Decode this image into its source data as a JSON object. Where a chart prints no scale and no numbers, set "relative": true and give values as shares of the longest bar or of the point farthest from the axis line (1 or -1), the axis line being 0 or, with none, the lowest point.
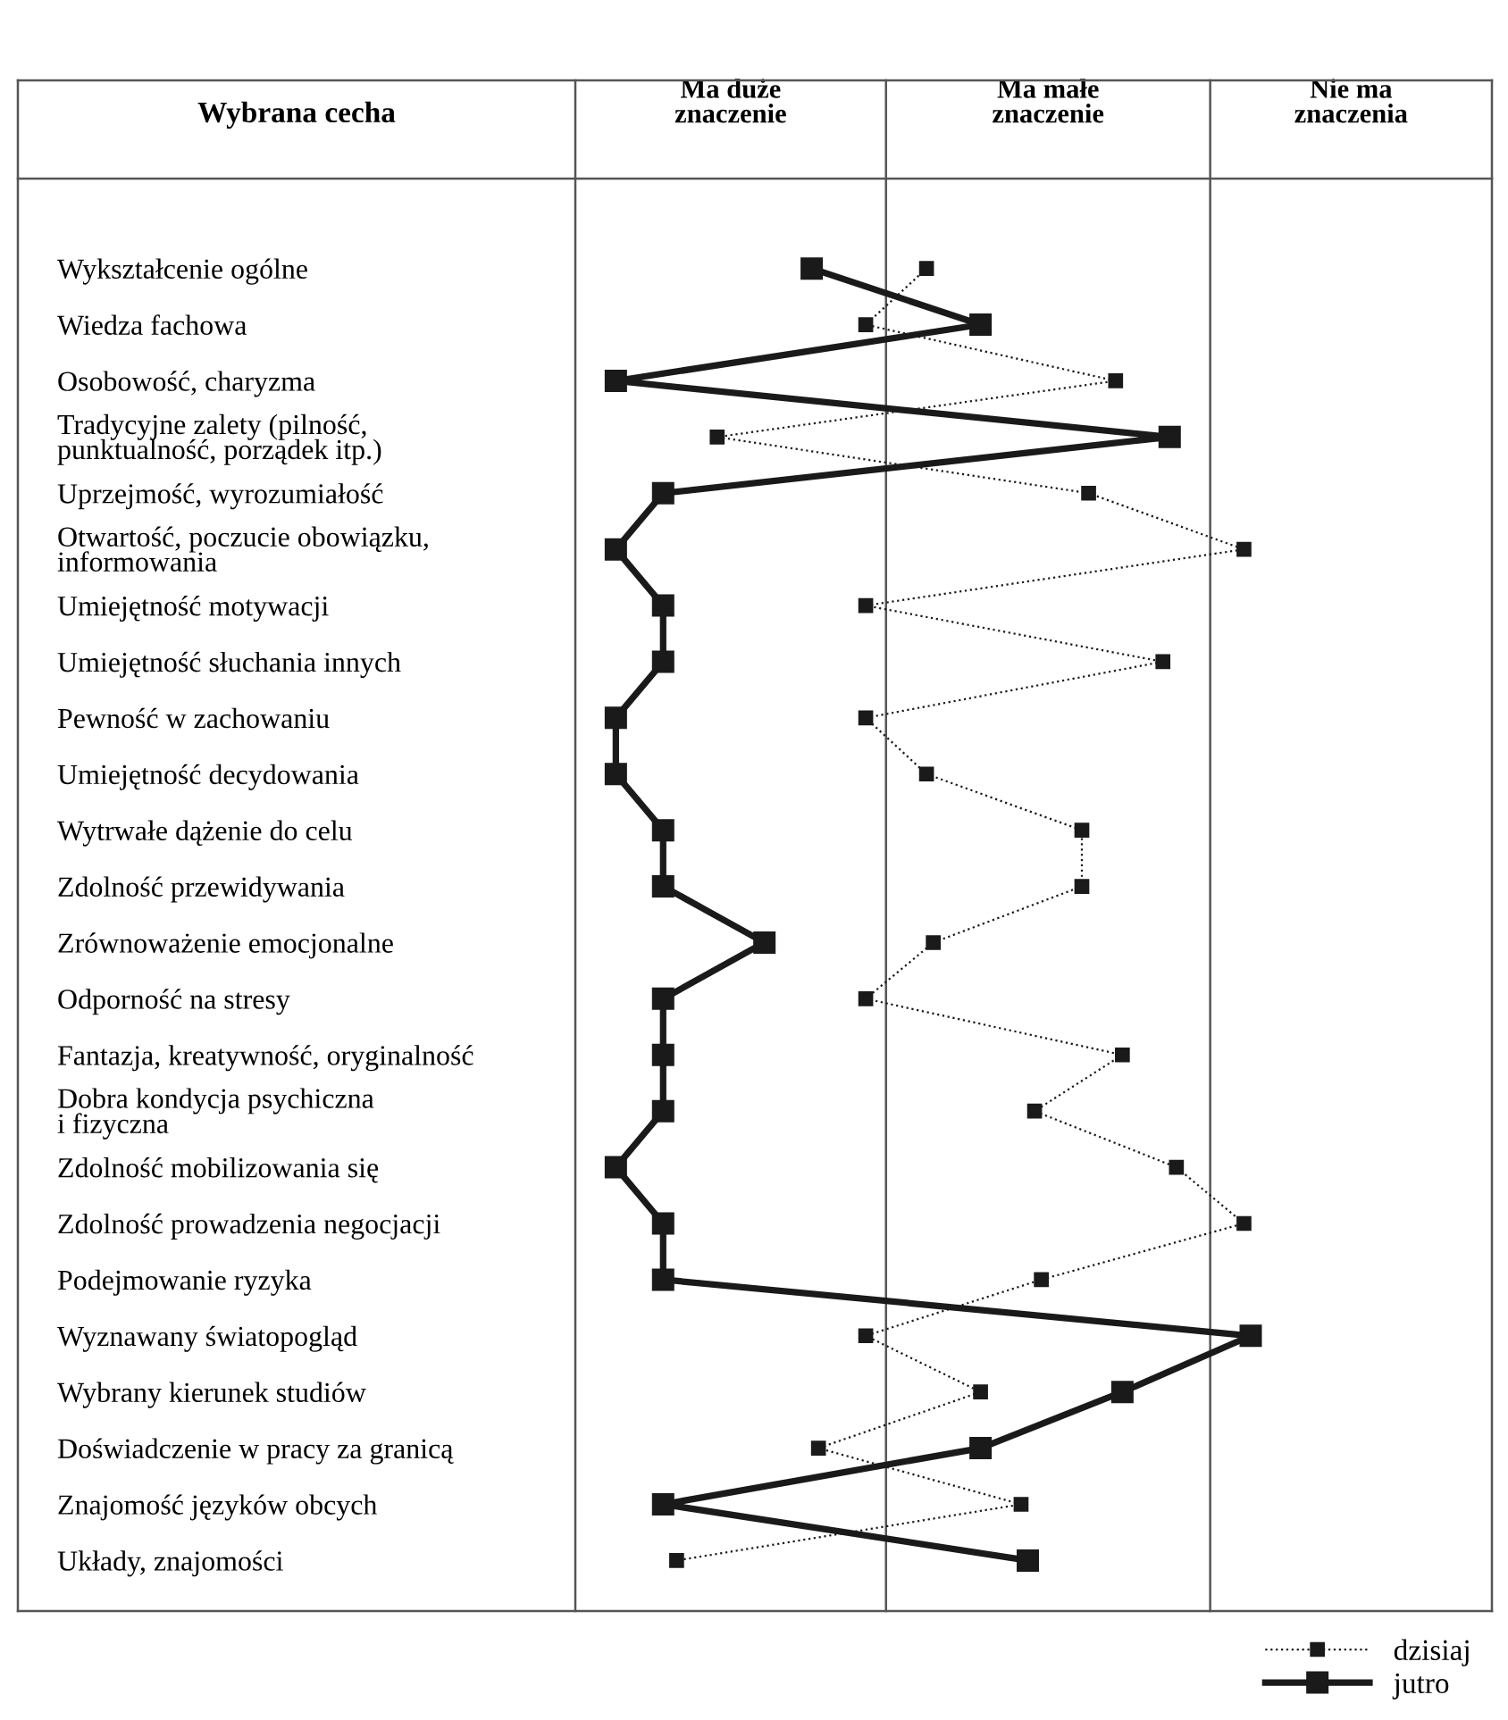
{
  "chart_data": {
    "type": "line",
    "orientation": "horizontal",
    "ylabel": "Wybrana cecha",
    "categories": [
      "Wykształcenie ogólne",
      "Wiedza fachowa",
      "Osobowość, charyzma",
      "Tradycyjne zalety (pilność,\npunktualność, porządek itp.)",
      "Uprzejmość, wyrozumiałość",
      "Otwartość, poczucie obowiązku,\ninformowania",
      "Umiejętność motywacji",
      "Umiejętność słuchania innych",
      "Pewność w zachowaniu",
      "Umiejętność decydowania",
      "Wytrwałe dążenie do celu",
      "Zdolność przewidywania",
      "Zrównoważenie emocjonalne",
      "Odporność na stresy",
      "Fantazja, kreatywność, oryginalność",
      "Dobra kondycja psychiczna\ni fizyczna",
      "Zdolność mobilizowania się",
      "Zdolność prowadzenia negocjacji",
      "Podejmowanie ryzyka",
      "Wyznawany światopogląd",
      "Wybrany kierunek studiów",
      "Doświadczenie w pracy za granicą",
      "Znajomość języków obcych",
      "Układy, znajomości"
    ],
    "series": [
      {
        "name": "dzisiaj",
        "color": "#1a1a1a",
        "line_style": "dotted",
        "marker": "square",
        "values": [
          0.52,
          0.43,
          0.8,
          0.21,
          0.76,
          0.99,
          0.43,
          0.87,
          0.43,
          0.52,
          0.75,
          0.75,
          0.53,
          0.43,
          0.81,
          0.68,
          0.89,
          0.99,
          0.69,
          0.43,
          0.6,
          0.36,
          0.66,
          0.15
        ]
      },
      {
        "name": "jutro",
        "color": "#1a1a1a",
        "line_style": "solid",
        "marker": "square",
        "values": [
          0.35,
          0.6,
          0.06,
          0.88,
          0.13,
          0.06,
          0.13,
          0.13,
          0.06,
          0.06,
          0.13,
          0.13,
          0.28,
          0.13,
          0.13,
          0.13,
          0.06,
          0.13,
          0.13,
          1,
          0.81,
          0.6,
          0.13,
          0.67
        ]
      }
    ],
    "relative": true,
    "annotations": [
      "Ma duże znaczenie",
      "Ma małe znaczenie",
      "Nie ma znaczenia"
    ],
    "ref_lines": [
      {
        "axis": "x",
        "value": 0.46,
        "color": "#555555"
      },
      {
        "axis": "x",
        "value": 0.94,
        "color": "#555555"
      }
    ],
    "legend": "bottom right"
  }
}
